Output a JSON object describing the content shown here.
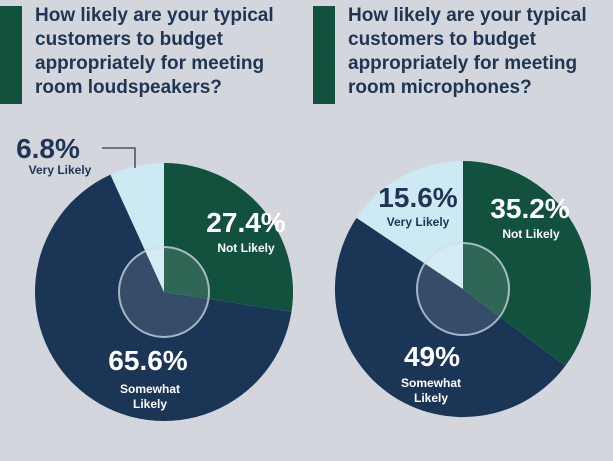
{
  "colors": {
    "background": "#d3d7dd",
    "accent": "#13513f",
    "not_likely": "#13513f",
    "somewhat_likely": "#1b3556",
    "very_likely": "#cde9f3",
    "question_text": "#1f3553",
    "callout_text": "#1f3553",
    "inner_text": "#ffffff"
  },
  "chart_data": [
    {
      "type": "pie",
      "title": "How likely are your typical customers to budget appropriately for meeting room loudspeakers?",
      "slices": [
        {
          "label_lines": [
            "Not Likely"
          ],
          "value": 27.4,
          "value_label": "27.4%",
          "color": "#13513f"
        },
        {
          "label_lines": [
            "Somewhat",
            "Likely"
          ],
          "value": 65.6,
          "value_label": "65.6%",
          "color": "#1b3556"
        },
        {
          "label_lines": [
            "Very Likely"
          ],
          "value": 6.8,
          "value_label": "6.8%",
          "color": "#cde9f3"
        }
      ]
    },
    {
      "type": "pie",
      "title": "How likely are your typical customers to budget appropriately for meeting room microphones?",
      "slices": [
        {
          "label_lines": [
            "Not Likely"
          ],
          "value": 35.2,
          "value_label": "35.2%",
          "color": "#13513f"
        },
        {
          "label_lines": [
            "Somewhat",
            "Likely"
          ],
          "value": 49,
          "value_label": "49%",
          "color": "#1b3556"
        },
        {
          "label_lines": [
            "Very Likely"
          ],
          "value": 15.6,
          "value_label": "15.6%",
          "color": "#cde9f3"
        }
      ]
    }
  ]
}
